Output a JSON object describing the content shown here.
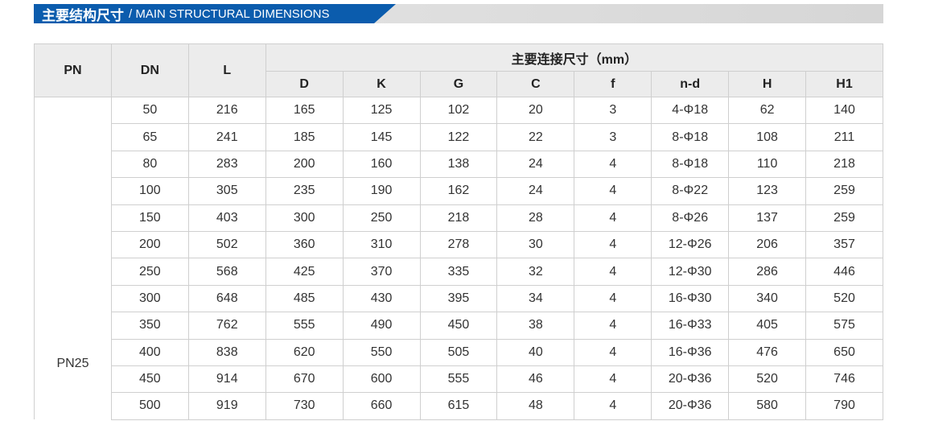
{
  "title": {
    "cn": "主要结构尺寸",
    "en": "/ MAIN STRUCTURAL DIMENSIONS",
    "color": "#0b5cad"
  },
  "table": {
    "headers": {
      "pn": "PN",
      "dn": "DN",
      "l": "L",
      "group": "主要连接尺寸（mm）",
      "sub": [
        "D",
        "K",
        "G",
        "C",
        "f",
        "n-d",
        "H",
        "H1"
      ]
    },
    "pn_value": "PN25",
    "rows": [
      [
        "50",
        "216",
        "165",
        "125",
        "102",
        "20",
        "3",
        "4-Φ18",
        "62",
        "140"
      ],
      [
        "65",
        "241",
        "185",
        "145",
        "122",
        "22",
        "3",
        "8-Φ18",
        "108",
        "211"
      ],
      [
        "80",
        "283",
        "200",
        "160",
        "138",
        "24",
        "4",
        "8-Φ18",
        "110",
        "218"
      ],
      [
        "100",
        "305",
        "235",
        "190",
        "162",
        "24",
        "4",
        "8-Φ22",
        "123",
        "259"
      ],
      [
        "150",
        "403",
        "300",
        "250",
        "218",
        "28",
        "4",
        "8-Φ26",
        "137",
        "259"
      ],
      [
        "200",
        "502",
        "360",
        "310",
        "278",
        "30",
        "4",
        "12-Φ26",
        "206",
        "357"
      ],
      [
        "250",
        "568",
        "425",
        "370",
        "335",
        "32",
        "4",
        "12-Φ30",
        "286",
        "446"
      ],
      [
        "300",
        "648",
        "485",
        "430",
        "395",
        "34",
        "4",
        "16-Φ30",
        "340",
        "520"
      ],
      [
        "350",
        "762",
        "555",
        "490",
        "450",
        "38",
        "4",
        "16-Φ33",
        "405",
        "575"
      ],
      [
        "400",
        "838",
        "620",
        "550",
        "505",
        "40",
        "4",
        "16-Φ36",
        "476",
        "650"
      ],
      [
        "450",
        "914",
        "670",
        "600",
        "555",
        "46",
        "4",
        "20-Φ36",
        "520",
        "746"
      ],
      [
        "500",
        "919",
        "730",
        "660",
        "615",
        "48",
        "4",
        "20-Φ36",
        "580",
        "790"
      ]
    ]
  }
}
